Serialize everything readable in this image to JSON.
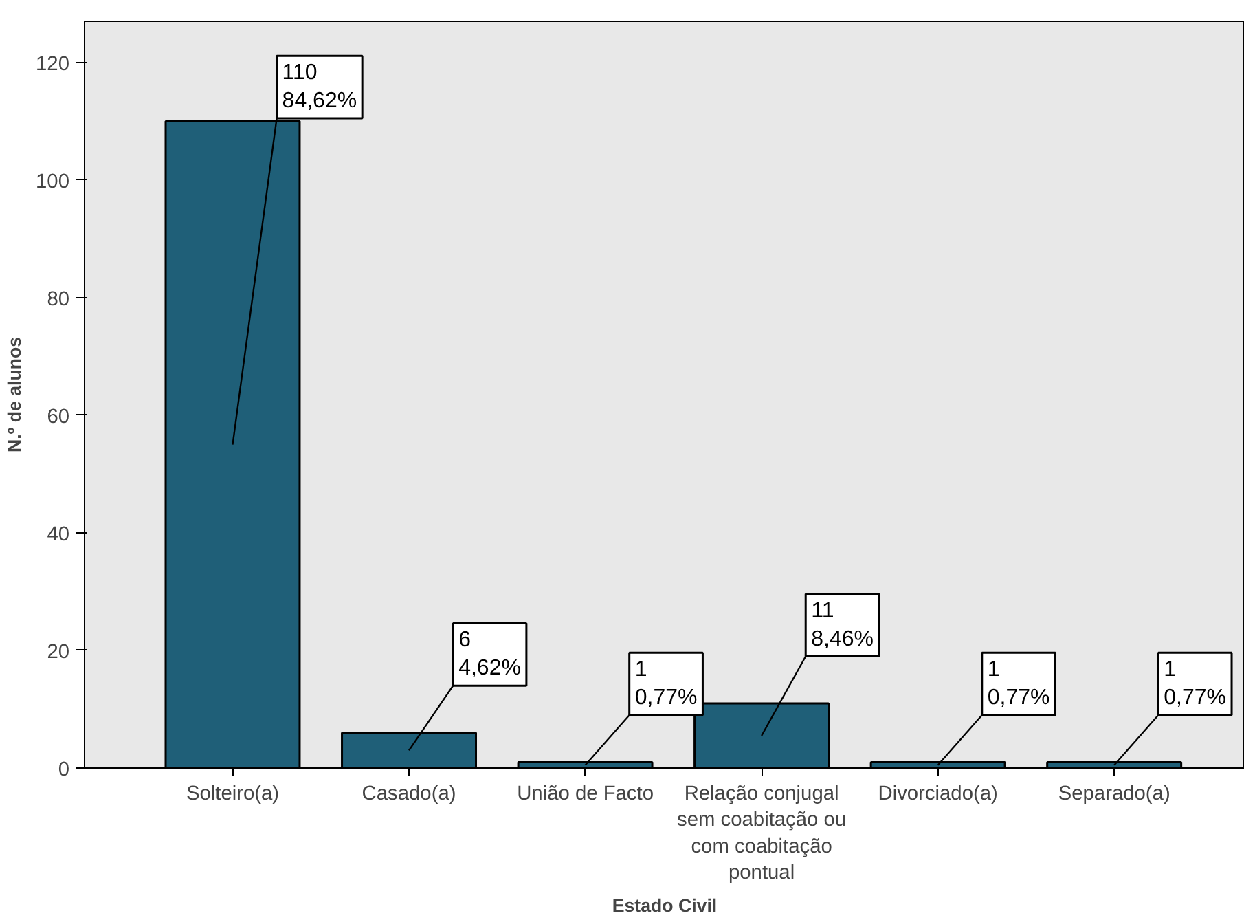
{
  "chart_data": {
    "type": "bar",
    "xlabel": "Estado Civil",
    "ylabel": "N.º de alunos",
    "categories": [
      "Solteiro(a)",
      "Casado(a)",
      "União de Facto",
      "Relação conjugal sem coabitação ou com coabitação pontual",
      "Divorciado(a)",
      "Separado(a)"
    ],
    "values": [
      110,
      6,
      1,
      11,
      1,
      1
    ],
    "value_labels": [
      "110\n84,62%",
      "6\n4,62%",
      "1\n0,77%",
      "11\n8,46%",
      "1\n0,77%",
      "1\n0,77%"
    ],
    "color": "#1f5f78",
    "ylim": [
      0,
      127
    ],
    "yticks": [
      0,
      20,
      40,
      60,
      80,
      100,
      120
    ],
    "grid": false
  }
}
